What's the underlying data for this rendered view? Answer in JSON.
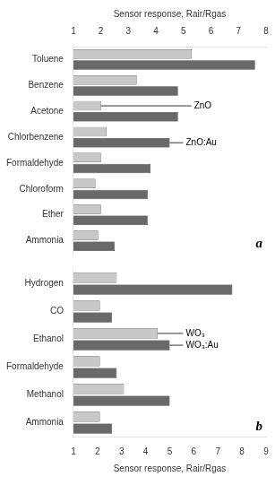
{
  "chart_data": [
    {
      "type": "bar",
      "orientation": "horizontal",
      "xlabel": "Sensor response, Rair/Rgas",
      "categories": [
        "Toluene",
        "Benzene",
        "Acetone",
        "Chlorbenzene",
        "Formaldehyde",
        "Chloroform",
        "Ether",
        "Ammonia"
      ],
      "series": [
        {
          "name": "ZnO",
          "color": "#c8c8c8",
          "values": [
            5.3,
            3.3,
            2.0,
            2.2,
            2.0,
            1.8,
            2.0,
            1.9
          ]
        },
        {
          "name": "ZnO:Au",
          "color": "#696969",
          "values": [
            7.6,
            4.8,
            4.8,
            4.5,
            3.8,
            3.7,
            3.7,
            2.5
          ]
        }
      ],
      "xlim": [
        1,
        8
      ],
      "xticks": [
        1,
        2,
        3,
        4,
        5,
        6,
        7,
        8
      ],
      "grid": false,
      "annotations": [
        {
          "text": "ZnO",
          "series": "ZnO",
          "category": "Acetone"
        },
        {
          "text": "ZnO:Au",
          "series": "ZnO:Au",
          "category": "Chlorbenzene"
        },
        {
          "text": "a"
        }
      ]
    },
    {
      "type": "bar",
      "orientation": "horizontal",
      "xlabel": "Sensor response, Rair/Rgas",
      "categories": [
        "Hydrogen",
        "CO",
        "Ethanol",
        "Formaldehyde",
        "Methanol",
        "Ammonia"
      ],
      "series": [
        {
          "name": "WO₃",
          "color": "#c8c8c8",
          "values": [
            2.8,
            2.1,
            4.5,
            2.1,
            3.1,
            2.1
          ]
        },
        {
          "name": "WO₃:Au",
          "color": "#696969",
          "values": [
            7.6,
            2.6,
            5.0,
            2.8,
            5.0,
            2.6
          ]
        }
      ],
      "xlim": [
        1,
        9
      ],
      "xticks": [
        1,
        2,
        3,
        4,
        5,
        6,
        7,
        8,
        9
      ],
      "grid": false,
      "annotations": [
        {
          "text": "WO₃",
          "series": "WO₃",
          "category": "Ethanol"
        },
        {
          "text": "WO₃:Au",
          "series": "WO₃:Au",
          "category": "Ethanol"
        },
        {
          "text": "b"
        }
      ]
    }
  ]
}
